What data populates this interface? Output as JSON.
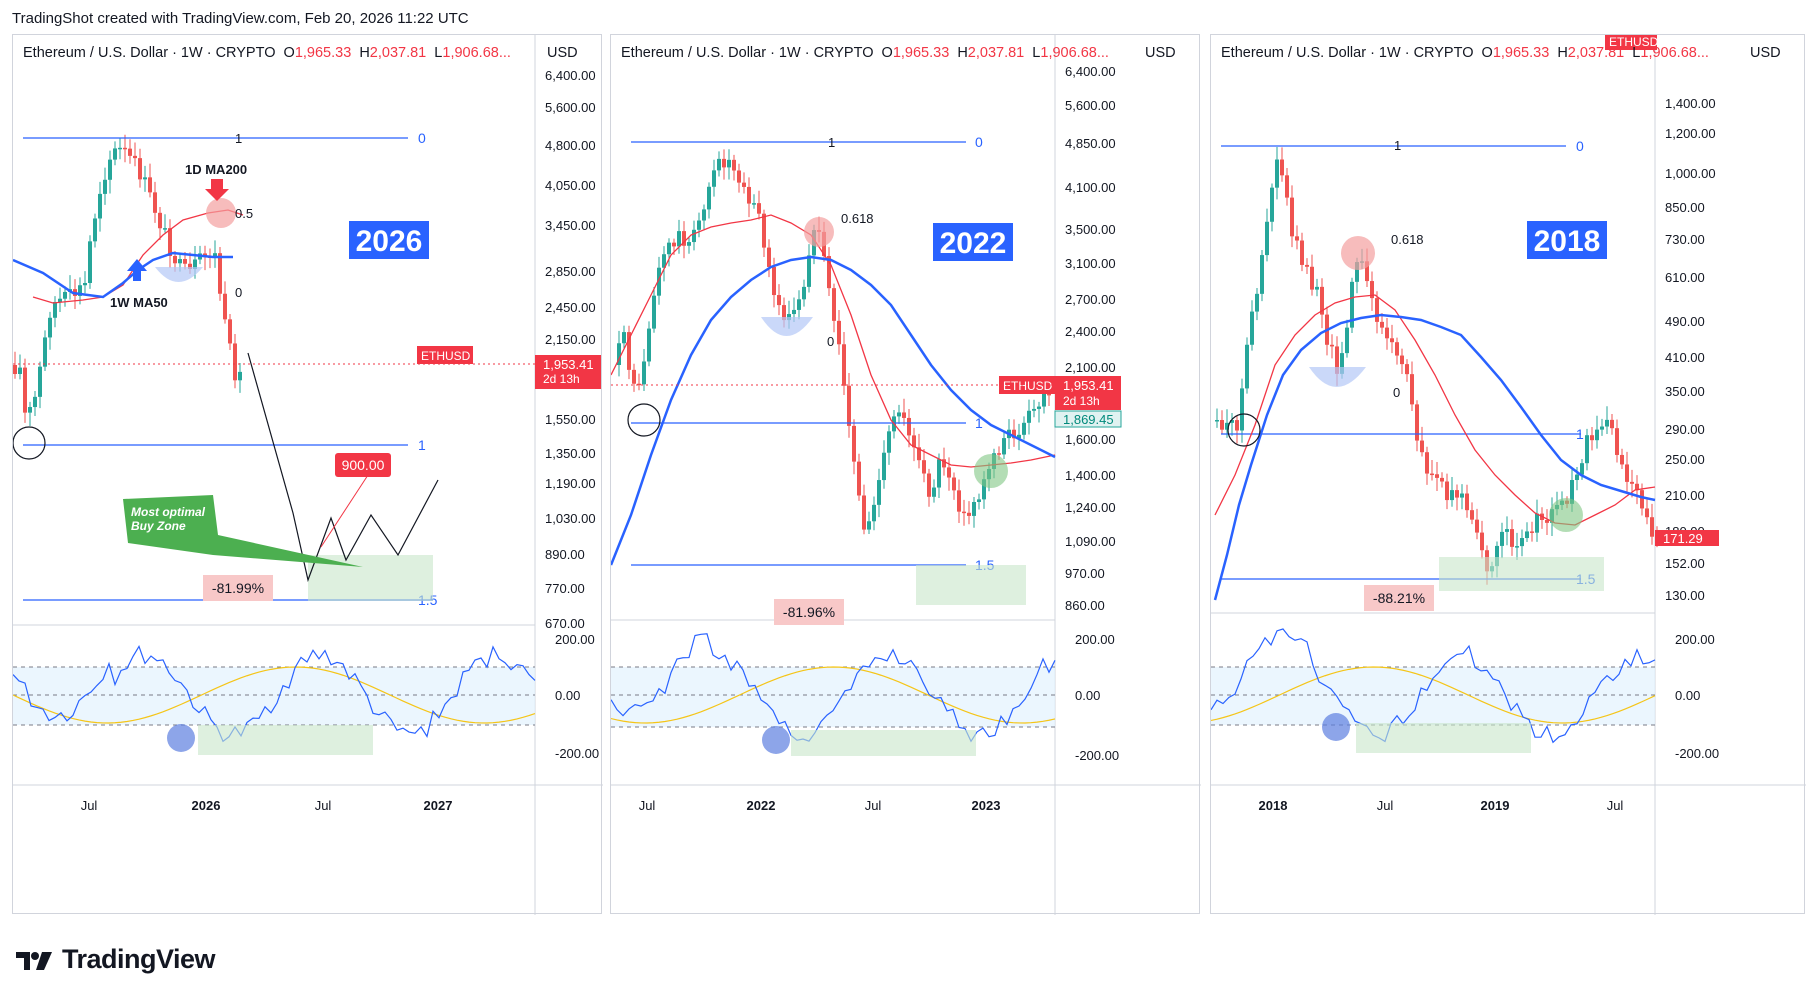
{
  "header": {
    "created_text": "TradingShot created with TradingView.com, Feb 20, 2026 11:22 UTC"
  },
  "footer": {
    "brand": "TradingView"
  },
  "colors": {
    "bull": "#26a69a",
    "bear": "#ef5350",
    "ma50": "#2962ff",
    "ma200": "#f23645",
    "fib": "#2962ff",
    "rsi": "#2962ff",
    "rsi_ma": "#f5c518",
    "badge_blue": "#2962ff",
    "zone_green": "#c8e6c9"
  },
  "panels": [
    {
      "legend": {
        "symbol": "Ethereum / U.S. Dollar · 1W · CRYPTO",
        "o": "1,965.33",
        "h": "2,037.81",
        "l": "1,906.68..."
      },
      "currency": "USD",
      "year_badge": "2026",
      "price_ticks": [
        "6,400.00",
        "5,600.00",
        "4,800.00",
        "4,050.00",
        "3,450.00",
        "2,850.00",
        "2,450.00",
        "2,150.00",
        "1,550.00",
        "1,350.00",
        "1,190.00",
        "1,030.00",
        "890.00",
        "770.00",
        "670.00"
      ],
      "osc_ticks": [
        "200.00",
        "0.00",
        "-200.00"
      ],
      "time_ticks": [
        "Jul",
        "2026",
        "Jul",
        "2027"
      ],
      "fib_labels": [
        "0",
        "1",
        "0.5",
        "0",
        "1",
        "1.5"
      ],
      "ticker_label": "ETHUSD",
      "last_price": "1,953.41",
      "countdown": "2d 13h",
      "annotations": {
        "ma200": "1D MA200",
        "ma50": "1W MA50",
        "buy_zone": "Most optimal Buy Zone",
        "target": "900.00",
        "drop": "-81.99%"
      }
    },
    {
      "legend": {
        "symbol": "Ethereum / U.S. Dollar · 1W · CRYPTO",
        "o": "1,965.33",
        "h": "2,037.81",
        "l": "1,906.68..."
      },
      "currency": "USD",
      "year_badge": "2022",
      "price_ticks": [
        "6,400.00",
        "5,600.00",
        "4,850.00",
        "4,100.00",
        "3,500.00",
        "3,100.00",
        "2,700.00",
        "2,400.00",
        "2,100.00",
        "1,600.00",
        "1,400.00",
        "1,240.00",
        "1,090.00",
        "970.00",
        "860.00"
      ],
      "osc_ticks": [
        "200.00",
        "0.00",
        "-200.00"
      ],
      "time_ticks": [
        "Jul",
        "2022",
        "Jul",
        "2023"
      ],
      "fib_labels": [
        "0",
        "1",
        "0.618",
        "0",
        "1",
        "1.5"
      ],
      "ticker_label": "ETHUSD",
      "last_price": "1,953.41",
      "countdown": "2d 13h",
      "ma_price": "1,869.45",
      "annotations": {
        "drop": "-81.96%"
      }
    },
    {
      "legend": {
        "symbol": "Ethereum / U.S. Dollar · 1W · CRYPTO",
        "o": "1,965.33",
        "h": "2,037.81",
        "l": "1,906.68..."
      },
      "currency": "USD",
      "year_badge": "2018",
      "price_ticks": [
        "1,400.00",
        "1,200.00",
        "1,000.00",
        "850.00",
        "730.00",
        "610.00",
        "490.00",
        "410.00",
        "350.00",
        "290.00",
        "250.00",
        "210.00",
        "180.00",
        "152.00",
        "130.00"
      ],
      "osc_ticks": [
        "200.00",
        "0.00",
        "-200.00"
      ],
      "time_ticks": [
        "2018",
        "Jul",
        "2019",
        "Jul"
      ],
      "fib_labels": [
        "0",
        "1",
        "0.618",
        "0",
        "1",
        "1.5"
      ],
      "ticker_label": "ETHUSD",
      "last_price": "171.29",
      "annotations": {
        "drop": "-88.21%"
      }
    }
  ],
  "chart_data": [
    {
      "type": "candlestick",
      "title": "Ethereum / U.S. Dollar · 1W · CRYPTO",
      "ylabel": "USD",
      "yscale": "log",
      "badge": "2026",
      "series": [
        {
          "name": "1W MA50"
        },
        {
          "name": "1D MA200"
        }
      ],
      "annotations": [
        "1D MA200",
        "1W MA50",
        "Most optimal Buy Zone",
        "900.00",
        "-81.99%"
      ]
    },
    {
      "type": "candlestick",
      "title": "Ethereum / U.S. Dollar · 1W · CRYPTO",
      "ylabel": "USD",
      "yscale": "log",
      "badge": "2022",
      "annotations": [
        "-81.96%"
      ]
    },
    {
      "type": "candlestick",
      "title": "Ethereum / U.S. Dollar · 1W · CRYPTO",
      "ylabel": "USD",
      "yscale": "log",
      "badge": "2018",
      "annotations": [
        "-88.21%"
      ]
    }
  ]
}
